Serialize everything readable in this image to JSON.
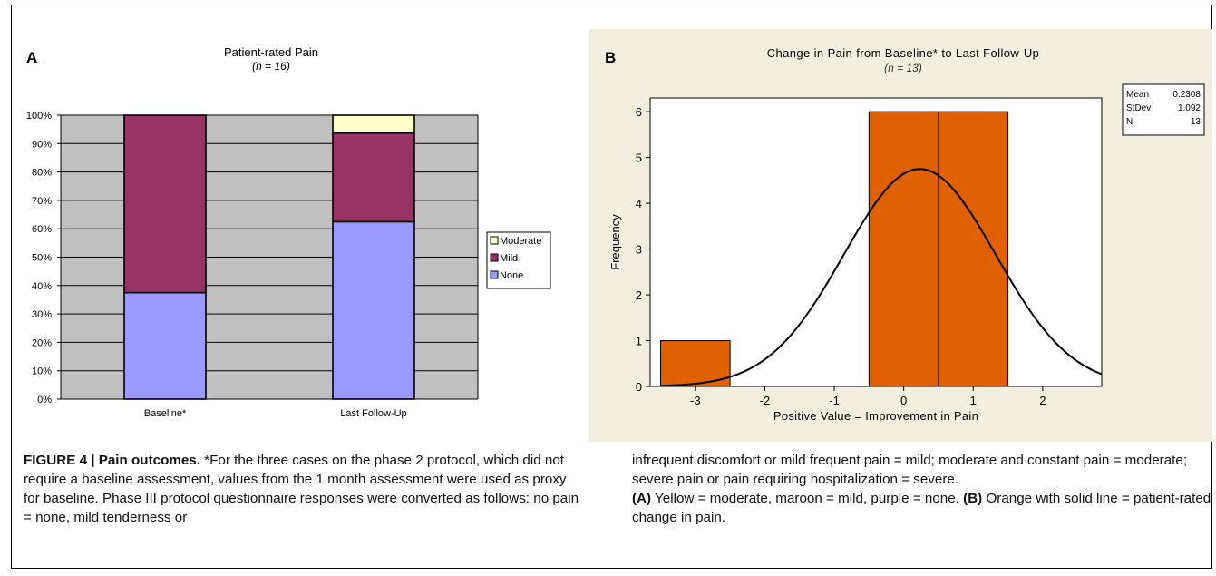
{
  "panel_a": {
    "label": "A",
    "title": "Patient-rated Pain",
    "subtitle": "(n = 16)",
    "colors": {
      "none": "#9999ff",
      "mild": "#993366",
      "moderate": "#ffffcc",
      "plot_bg": "#c0c0c0"
    }
  },
  "panel_b": {
    "label": "B",
    "title": "Change in Pain from Baseline* to Last Follow-Up",
    "subtitle": "(n = 13)",
    "stats": [
      {
        "label": "Mean",
        "value": "0.2308"
      },
      {
        "label": "StDev",
        "value": "1.092"
      },
      {
        "label": "N",
        "value": "13"
      }
    ],
    "colors": {
      "bar": "#e06000",
      "background": "#f3efdf"
    }
  },
  "chart_data": [
    {
      "type": "bar",
      "stacked": true,
      "title": "Patient-rated Pain",
      "subtitle": "(n = 16)",
      "categories": [
        "Baseline*",
        "Last Follow-Up"
      ],
      "series": [
        {
          "name": "None",
          "values": [
            37.5,
            62.5
          ]
        },
        {
          "name": "Mild",
          "values": [
            62.5,
            31.25
          ]
        },
        {
          "name": "Moderate",
          "values": [
            0,
            6.25
          ]
        }
      ],
      "yticks": [
        "0%",
        "10%",
        "20%",
        "30%",
        "40%",
        "50%",
        "60%",
        "70%",
        "80%",
        "90%",
        "100%"
      ],
      "ylim": [
        0,
        100
      ],
      "legend": [
        "Moderate",
        "Mild",
        "None"
      ],
      "legend_position": "right",
      "grid": true
    },
    {
      "type": "bar",
      "subtype": "histogram",
      "title": "Change in Pain from Baseline* to Last Follow-Up",
      "subtitle": "(n = 13)",
      "xlabel": "Positive Value = Improvement in Pain",
      "ylabel": "Frequency",
      "bins": [
        {
          "from": -3.5,
          "to": -2.5,
          "count": 1
        },
        {
          "from": -0.5,
          "to": 0.5,
          "count": 6
        },
        {
          "from": 0.5,
          "to": 1.5,
          "count": 6
        }
      ],
      "xticks": [
        -3,
        -2,
        -1,
        0,
        1,
        2
      ],
      "yticks": [
        0,
        1,
        2,
        3,
        4,
        5,
        6
      ],
      "xlim": [
        -3.65,
        2.85
      ],
      "ylim": [
        0,
        6.3
      ],
      "normal_curve": {
        "mean": 0.2308,
        "sd": 1.092,
        "n": 13,
        "bin_width": 1
      },
      "grid": false
    }
  ],
  "caption": {
    "fig_label": "FIGURE 4 | Pain outcomes.",
    "left_text": " *For the three cases on the phase 2 protocol, which did not require a baseline assessment, values from the 1 month assessment were used as proxy for baseline. Phase III protocol questionnaire responses were converted as follows: no pain = none, mild tenderness or",
    "right_text_1": "infrequent discomfort or mild frequent pain = mild; moderate and constant pain = moderate; severe pain or pain requiring hospitalization = severe.",
    "a_label": "(A)",
    "a_text": " Yellow = moderate, maroon = mild, purple = none. ",
    "b_label": "(B)",
    "b_text": " Orange with solid line = patient-rated change in pain."
  }
}
